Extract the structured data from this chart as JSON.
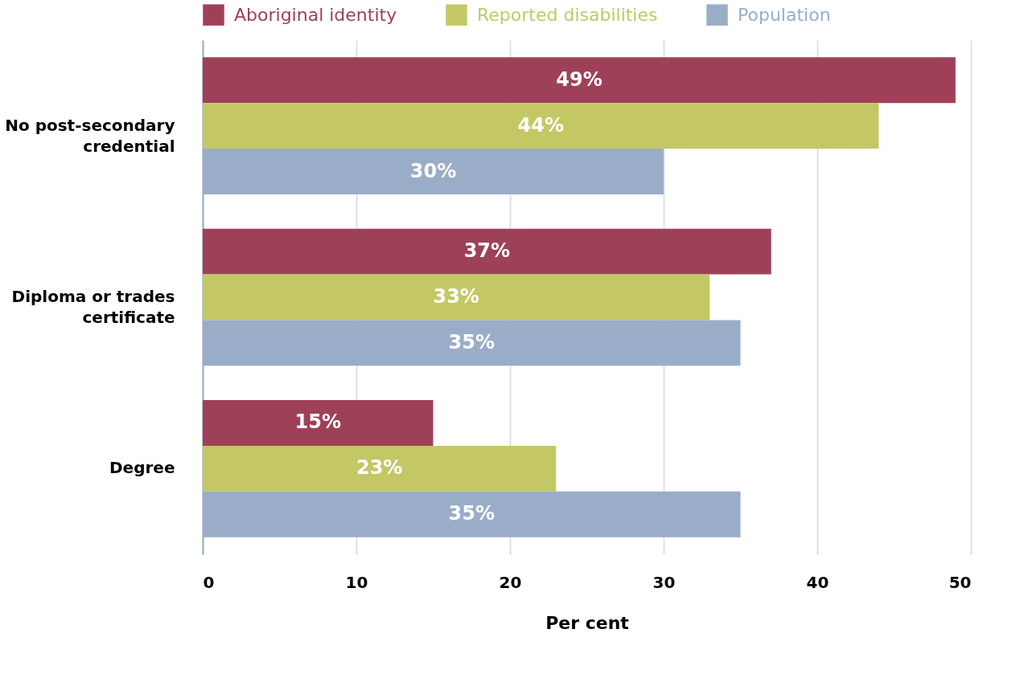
{
  "chart_data": {
    "type": "bar",
    "orientation": "horizontal",
    "xlabel": "Per cent",
    "categories": [
      "No post-secondary credential",
      "Diploma or trades certificate",
      "Degree"
    ],
    "series": [
      {
        "name": "Aboriginal identity",
        "color": "#9e4158",
        "values": [
          49,
          37,
          15
        ],
        "value_labels": [
          "49%",
          "37%",
          "15%"
        ]
      },
      {
        "name": "Reported disabilities",
        "color": "#c3c865",
        "values": [
          44,
          33,
          23
        ],
        "value_labels": [
          "44%",
          "33%",
          "23%"
        ]
      },
      {
        "name": "Population",
        "color": "#9aadc8",
        "values": [
          30,
          35,
          35
        ],
        "value_labels": [
          "30%",
          "35%",
          "35%"
        ]
      }
    ],
    "xlim": [
      0,
      50
    ],
    "xticks": [
      0,
      10,
      20,
      30,
      40,
      50
    ],
    "grid": "x",
    "legend": "top"
  }
}
